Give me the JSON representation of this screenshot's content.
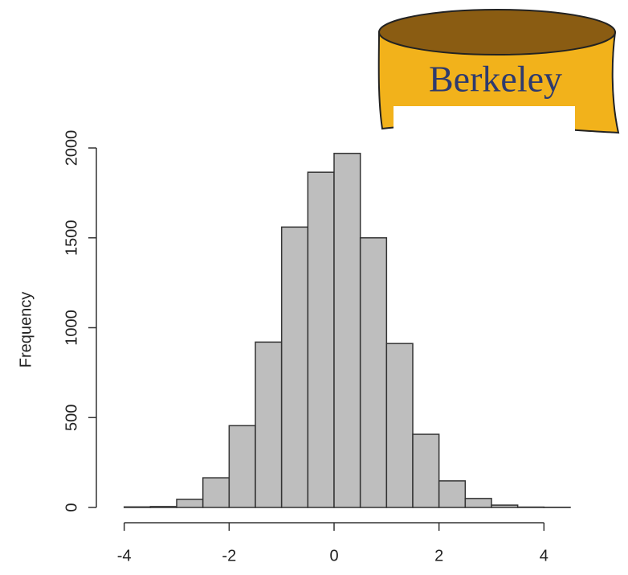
{
  "chart_data": {
    "type": "histogram",
    "y_label": "Frequency",
    "bins": [
      -4,
      -3.5,
      -3,
      -2.5,
      -2,
      -1.5,
      -1,
      -0.5,
      0,
      0.5,
      1,
      1.5,
      2,
      2.5,
      3,
      3.5,
      4,
      4.5
    ],
    "values": [
      3,
      5,
      45,
      165,
      455,
      920,
      1560,
      1865,
      1970,
      1500,
      912,
      407,
      148,
      50,
      13,
      2,
      1
    ],
    "color": "#bebebe",
    "xlim": [
      -4.5,
      4.5
    ],
    "xticks": [
      -4,
      -2,
      0,
      2,
      4
    ],
    "ylim": [
      0,
      2000
    ],
    "yticks": [
      0,
      500,
      1000,
      1500,
      2000
    ]
  },
  "logo": {
    "text": "Berkeley"
  }
}
